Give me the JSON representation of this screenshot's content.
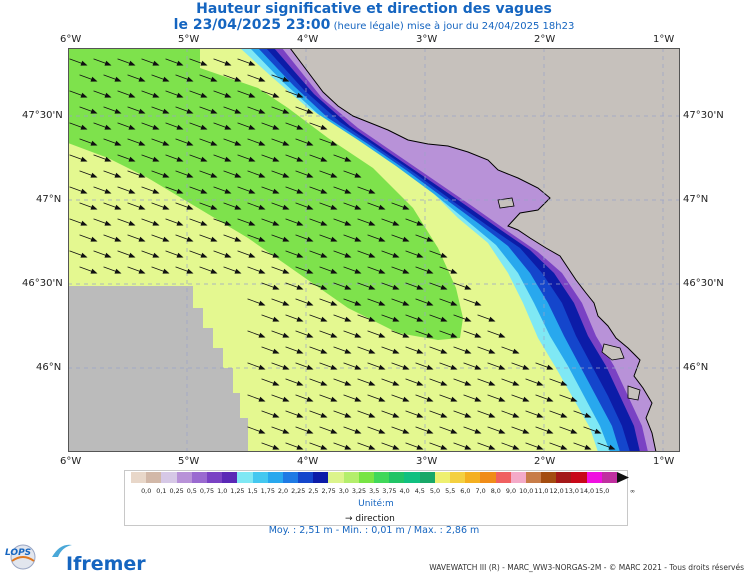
{
  "title": "Hauteur significative et direction des vagues",
  "subtitle_date": "le 23/04/2025 23:00",
  "subtitle_note": "(heure légale) mise à jour du 24/04/2025 18h23",
  "lon_labels": [
    "6°W",
    "5°W",
    "4°W",
    "3°W",
    "2°W",
    "1°W"
  ],
  "lat_labels": [
    "47°30'N",
    "47°N",
    "46°30'N",
    "46°N"
  ],
  "legend": {
    "values": [
      "0,0",
      "0,1",
      "0,25",
      "0,5",
      "0,75",
      "1,0",
      "1,25",
      "1,5",
      "1,75",
      "2,0",
      "2,25",
      "2,5",
      "2,75",
      "3,0",
      "3,25",
      "3,5",
      "3,75",
      "4,0",
      "4,5",
      "5,0",
      "5,5",
      "6,0",
      "7,0",
      "8,0",
      "9,0",
      "10,0",
      "11,0",
      "12,0",
      "13,0",
      "14,0",
      "15,0"
    ],
    "overflow_mark": "∞",
    "colors": [
      "#e8d7c9",
      "#d2b8a8",
      "#d6c8e6",
      "#b892d8",
      "#9a6ad0",
      "#7a42c4",
      "#5a28b6",
      "#7fe8f4",
      "#44c8f0",
      "#28a8ee",
      "#1e7ae4",
      "#1446cc",
      "#0c1ca8",
      "#dcf48c",
      "#b4ee6c",
      "#78e444",
      "#40d85a",
      "#20c466",
      "#10c080",
      "#18a868",
      "#eef070",
      "#f4d040",
      "#f4b020",
      "#f08c18",
      "#f06060",
      "#f4aac8",
      "#c87c48",
      "#a44c10",
      "#a41818",
      "#c80818",
      "#f010e0",
      "#c030a0"
    ],
    "unit_label": "Unité:m",
    "direction_label": "direction"
  },
  "stats": "Moy. : 2,51 m   -   Min. : 0,01 m / Max. : 2,86 m",
  "footer": "WAVEWATCH III (R) - MARC_WW3-NORGAS-2M - © MARC 2021 - Tous droits réservés",
  "logos": {
    "lops": "LOPS",
    "ifremer": "Ifremer"
  },
  "map_colors": {
    "sea_2_5_2_75": "#e4f890",
    "sea_2_75_3": "#7ee24c",
    "land": "#c6c1bc",
    "nodata": "#bbbbbb",
    "coast_dark": "#0c1ca8",
    "coast_mid": "#1446cc",
    "coast_light": "#28a8ee",
    "coast_cyan": "#7fe8f4",
    "coast_purple": "#7a42c4",
    "coast_lavender": "#b892d8"
  }
}
